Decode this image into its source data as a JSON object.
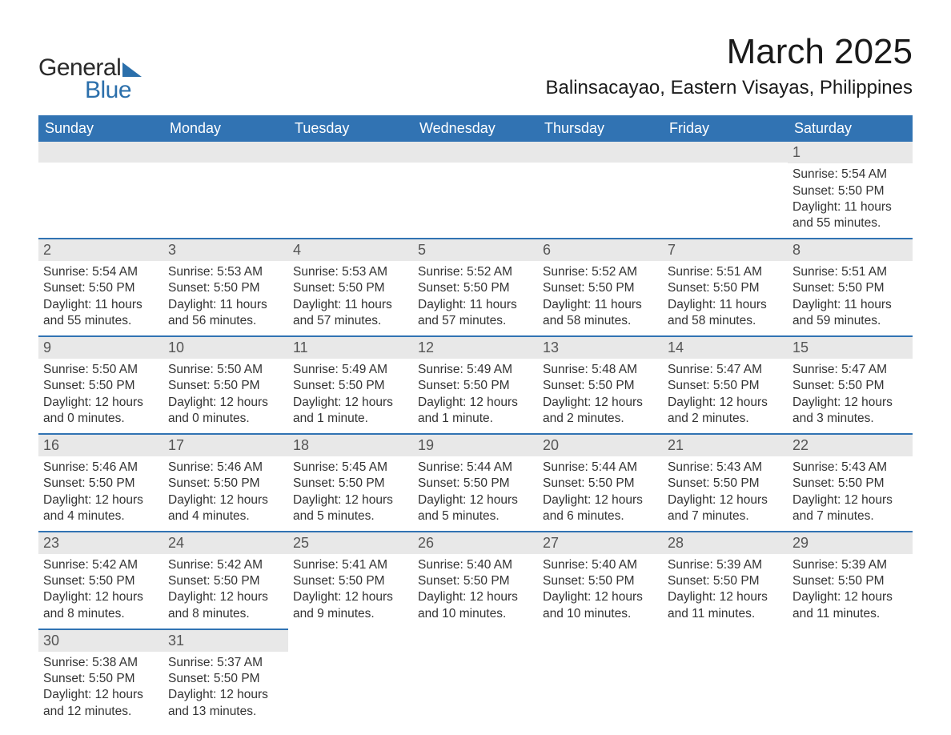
{
  "logo": {
    "text_general": "General",
    "text_blue": "Blue",
    "color_dark": "#2a2a2a",
    "color_blue": "#2b6fab"
  },
  "title": "March 2025",
  "location": "Balinsacayao, Eastern Visayas, Philippines",
  "calendar": {
    "header_bg": "#3173b3",
    "header_fg": "#ffffff",
    "strip_bg": "#e8e8e8",
    "rule_color": "#3173b3",
    "text_color": "#333333",
    "daynum_color": "#555555",
    "body_bg": "#ffffff",
    "font_size_body": 15.5,
    "font_size_daynum": 18,
    "font_size_dow": 18,
    "font_size_title": 44,
    "font_size_location": 24,
    "days_of_week": [
      "Sunday",
      "Monday",
      "Tuesday",
      "Wednesday",
      "Thursday",
      "Friday",
      "Saturday"
    ],
    "weeks": [
      [
        null,
        null,
        null,
        null,
        null,
        null,
        {
          "n": "1",
          "sunrise": "Sunrise: 5:54 AM",
          "sunset": "Sunset: 5:50 PM",
          "daylight": "Daylight: 11 hours and 55 minutes."
        }
      ],
      [
        {
          "n": "2",
          "sunrise": "Sunrise: 5:54 AM",
          "sunset": "Sunset: 5:50 PM",
          "daylight": "Daylight: 11 hours and 55 minutes."
        },
        {
          "n": "3",
          "sunrise": "Sunrise: 5:53 AM",
          "sunset": "Sunset: 5:50 PM",
          "daylight": "Daylight: 11 hours and 56 minutes."
        },
        {
          "n": "4",
          "sunrise": "Sunrise: 5:53 AM",
          "sunset": "Sunset: 5:50 PM",
          "daylight": "Daylight: 11 hours and 57 minutes."
        },
        {
          "n": "5",
          "sunrise": "Sunrise: 5:52 AM",
          "sunset": "Sunset: 5:50 PM",
          "daylight": "Daylight: 11 hours and 57 minutes."
        },
        {
          "n": "6",
          "sunrise": "Sunrise: 5:52 AM",
          "sunset": "Sunset: 5:50 PM",
          "daylight": "Daylight: 11 hours and 58 minutes."
        },
        {
          "n": "7",
          "sunrise": "Sunrise: 5:51 AM",
          "sunset": "Sunset: 5:50 PM",
          "daylight": "Daylight: 11 hours and 58 minutes."
        },
        {
          "n": "8",
          "sunrise": "Sunrise: 5:51 AM",
          "sunset": "Sunset: 5:50 PM",
          "daylight": "Daylight: 11 hours and 59 minutes."
        }
      ],
      [
        {
          "n": "9",
          "sunrise": "Sunrise: 5:50 AM",
          "sunset": "Sunset: 5:50 PM",
          "daylight": "Daylight: 12 hours and 0 minutes."
        },
        {
          "n": "10",
          "sunrise": "Sunrise: 5:50 AM",
          "sunset": "Sunset: 5:50 PM",
          "daylight": "Daylight: 12 hours and 0 minutes."
        },
        {
          "n": "11",
          "sunrise": "Sunrise: 5:49 AM",
          "sunset": "Sunset: 5:50 PM",
          "daylight": "Daylight: 12 hours and 1 minute."
        },
        {
          "n": "12",
          "sunrise": "Sunrise: 5:49 AM",
          "sunset": "Sunset: 5:50 PM",
          "daylight": "Daylight: 12 hours and 1 minute."
        },
        {
          "n": "13",
          "sunrise": "Sunrise: 5:48 AM",
          "sunset": "Sunset: 5:50 PM",
          "daylight": "Daylight: 12 hours and 2 minutes."
        },
        {
          "n": "14",
          "sunrise": "Sunrise: 5:47 AM",
          "sunset": "Sunset: 5:50 PM",
          "daylight": "Daylight: 12 hours and 2 minutes."
        },
        {
          "n": "15",
          "sunrise": "Sunrise: 5:47 AM",
          "sunset": "Sunset: 5:50 PM",
          "daylight": "Daylight: 12 hours and 3 minutes."
        }
      ],
      [
        {
          "n": "16",
          "sunrise": "Sunrise: 5:46 AM",
          "sunset": "Sunset: 5:50 PM",
          "daylight": "Daylight: 12 hours and 4 minutes."
        },
        {
          "n": "17",
          "sunrise": "Sunrise: 5:46 AM",
          "sunset": "Sunset: 5:50 PM",
          "daylight": "Daylight: 12 hours and 4 minutes."
        },
        {
          "n": "18",
          "sunrise": "Sunrise: 5:45 AM",
          "sunset": "Sunset: 5:50 PM",
          "daylight": "Daylight: 12 hours and 5 minutes."
        },
        {
          "n": "19",
          "sunrise": "Sunrise: 5:44 AM",
          "sunset": "Sunset: 5:50 PM",
          "daylight": "Daylight: 12 hours and 5 minutes."
        },
        {
          "n": "20",
          "sunrise": "Sunrise: 5:44 AM",
          "sunset": "Sunset: 5:50 PM",
          "daylight": "Daylight: 12 hours and 6 minutes."
        },
        {
          "n": "21",
          "sunrise": "Sunrise: 5:43 AM",
          "sunset": "Sunset: 5:50 PM",
          "daylight": "Daylight: 12 hours and 7 minutes."
        },
        {
          "n": "22",
          "sunrise": "Sunrise: 5:43 AM",
          "sunset": "Sunset: 5:50 PM",
          "daylight": "Daylight: 12 hours and 7 minutes."
        }
      ],
      [
        {
          "n": "23",
          "sunrise": "Sunrise: 5:42 AM",
          "sunset": "Sunset: 5:50 PM",
          "daylight": "Daylight: 12 hours and 8 minutes."
        },
        {
          "n": "24",
          "sunrise": "Sunrise: 5:42 AM",
          "sunset": "Sunset: 5:50 PM",
          "daylight": "Daylight: 12 hours and 8 minutes."
        },
        {
          "n": "25",
          "sunrise": "Sunrise: 5:41 AM",
          "sunset": "Sunset: 5:50 PM",
          "daylight": "Daylight: 12 hours and 9 minutes."
        },
        {
          "n": "26",
          "sunrise": "Sunrise: 5:40 AM",
          "sunset": "Sunset: 5:50 PM",
          "daylight": "Daylight: 12 hours and 10 minutes."
        },
        {
          "n": "27",
          "sunrise": "Sunrise: 5:40 AM",
          "sunset": "Sunset: 5:50 PM",
          "daylight": "Daylight: 12 hours and 10 minutes."
        },
        {
          "n": "28",
          "sunrise": "Sunrise: 5:39 AM",
          "sunset": "Sunset: 5:50 PM",
          "daylight": "Daylight: 12 hours and 11 minutes."
        },
        {
          "n": "29",
          "sunrise": "Sunrise: 5:39 AM",
          "sunset": "Sunset: 5:50 PM",
          "daylight": "Daylight: 12 hours and 11 minutes."
        }
      ],
      [
        {
          "n": "30",
          "sunrise": "Sunrise: 5:38 AM",
          "sunset": "Sunset: 5:50 PM",
          "daylight": "Daylight: 12 hours and 12 minutes."
        },
        {
          "n": "31",
          "sunrise": "Sunrise: 5:37 AM",
          "sunset": "Sunset: 5:50 PM",
          "daylight": "Daylight: 12 hours and 13 minutes."
        },
        null,
        null,
        null,
        null,
        null
      ]
    ]
  }
}
